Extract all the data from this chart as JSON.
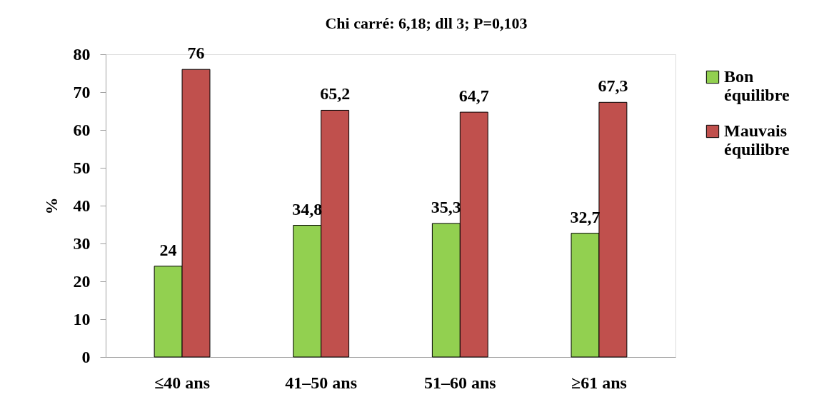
{
  "chart_data": {
    "type": "bar",
    "title": "Chi carré: 6,18; dll 3; P=0,103",
    "ylabel": "%",
    "categories": [
      "≤40 ans",
      "41–50 ans",
      "51–60 ans",
      "≥61 ans"
    ],
    "series": [
      {
        "name": "Bon équilibre",
        "color": "#92d050",
        "values": [
          24,
          34.8,
          35.3,
          32.7
        ],
        "value_labels": [
          "24",
          "34,8",
          "35,3",
          "32,7"
        ]
      },
      {
        "name": "Mauvais équilibre",
        "color": "#c0504d",
        "values": [
          76,
          65.2,
          64.7,
          67.3
        ],
        "value_labels": [
          "76",
          "65,2",
          "64,7",
          "67,3"
        ]
      }
    ],
    "ylim": [
      0,
      80
    ],
    "yticks": [
      0,
      10,
      20,
      30,
      40,
      50,
      60,
      70,
      80
    ],
    "grid": false,
    "legend": "right"
  }
}
